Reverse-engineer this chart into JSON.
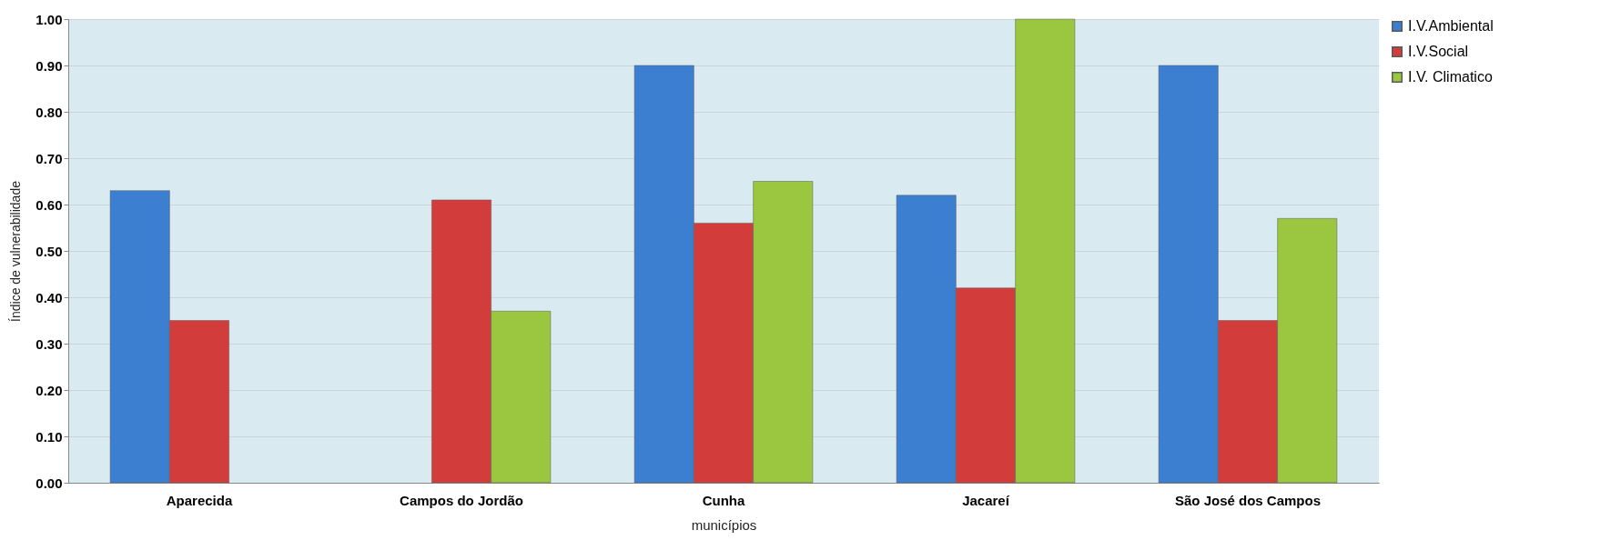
{
  "chart_data": {
    "type": "bar",
    "xlabel": "municípios",
    "ylabel": "Índice de vulnerabilidade",
    "categories": [
      "Aparecida",
      "Campos do Jordão",
      "Cunha",
      "Jacareí",
      "São José dos Campos"
    ],
    "series": [
      {
        "name": "I.V.Ambiental",
        "color": "#3c7fd0",
        "values": [
          0.63,
          null,
          0.9,
          0.62,
          0.9
        ]
      },
      {
        "name": "I.V.Social",
        "color": "#d23c3a",
        "values": [
          0.35,
          0.61,
          0.56,
          0.42,
          0.35
        ]
      },
      {
        "name": "I.V. Climatico",
        "color": "#9bc63f",
        "values": [
          null,
          0.37,
          0.65,
          1.0,
          0.57
        ]
      }
    ],
    "ylim": [
      0,
      1
    ],
    "yticks": [
      {
        "value": 0,
        "label": "0.00"
      },
      {
        "value": 0.1,
        "label": "0.10"
      },
      {
        "value": 0.2,
        "label": "0.20"
      },
      {
        "value": 0.3,
        "label": "0.30"
      },
      {
        "value": 0.4,
        "label": "0.40"
      },
      {
        "value": 0.5,
        "label": "0.50"
      },
      {
        "value": 0.6,
        "label": "0.60"
      },
      {
        "value": 0.7,
        "label": "0.70"
      },
      {
        "value": 0.8,
        "label": "0.80"
      },
      {
        "value": 0.9,
        "label": "0.90"
      },
      {
        "value": 1,
        "label": "1.00"
      }
    ],
    "grid": "y",
    "legend": "right"
  }
}
